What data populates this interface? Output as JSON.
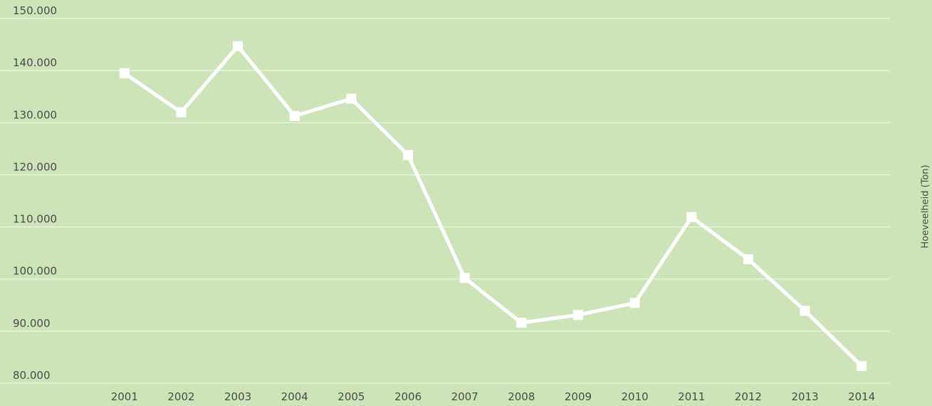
{
  "chart_data": {
    "type": "line",
    "y_label": "Hoeveelheid (Ton)",
    "categories": [
      "2001",
      "2002",
      "2003",
      "2004",
      "2005",
      "2006",
      "2007",
      "2008",
      "2009",
      "2010",
      "2011",
      "2012",
      "2013",
      "2014"
    ],
    "values": [
      139500,
      132000,
      144700,
      131300,
      134600,
      123800,
      100200,
      91600,
      93100,
      95400,
      111900,
      103800,
      93900,
      83300
    ],
    "color": "#ffffff",
    "ylim": [
      80000,
      150000
    ],
    "yticks": [
      {
        "value": 80000,
        "label": "80.000"
      },
      {
        "value": 90000,
        "label": "90.000"
      },
      {
        "value": 100000,
        "label": "100.000"
      },
      {
        "value": 110000,
        "label": "110.000"
      },
      {
        "value": 120000,
        "label": "120.000"
      },
      {
        "value": 130000,
        "label": "130.000"
      },
      {
        "value": 140000,
        "label": "140.000"
      },
      {
        "value": 150000,
        "label": "150.000"
      }
    ],
    "grid": true
  }
}
